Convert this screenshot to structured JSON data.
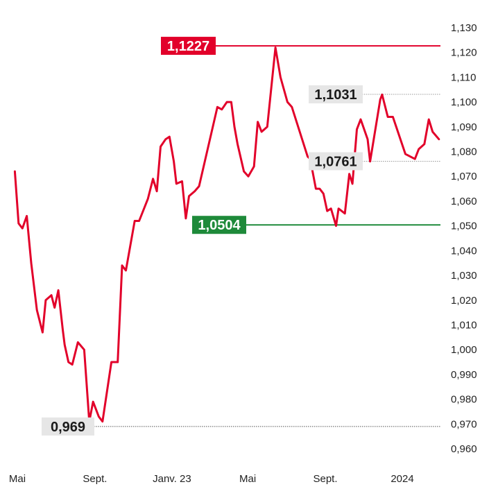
{
  "chart_data": {
    "type": "line",
    "title": "",
    "xlabel": "",
    "ylabel": "",
    "ylim": [
      0.96,
      1.13
    ],
    "y_ticks": [
      "1,130",
      "1,120",
      "1,110",
      "1,100",
      "1,090",
      "1,080",
      "1,070",
      "1,060",
      "1,050",
      "1,040",
      "1,030",
      "1,020",
      "1,010",
      "1,000",
      "0,990",
      "0,980",
      "0,970",
      "0,960"
    ],
    "y_tick_values": [
      1.13,
      1.12,
      1.11,
      1.1,
      1.09,
      1.08,
      1.07,
      1.06,
      1.05,
      1.04,
      1.03,
      1.02,
      1.01,
      1.0,
      0.99,
      0.98,
      0.97,
      0.96
    ],
    "x_ticks": [
      "Mai",
      "Sept.",
      "Janv. 23",
      "Mai",
      "Sept.",
      "2024"
    ],
    "x_tick_dates": [
      "2022-05-01",
      "2022-09-01",
      "2023-01-01",
      "2023-05-01",
      "2023-09-01",
      "2024-01-01"
    ],
    "grid": false,
    "series": [
      {
        "color": "#e2002a",
        "points": [
          [
            "2022-04-27",
            1.072
          ],
          [
            "2022-05-03",
            1.051
          ],
          [
            "2022-05-09",
            1.049
          ],
          [
            "2022-05-16",
            1.054
          ],
          [
            "2022-05-23",
            1.035
          ],
          [
            "2022-06-01",
            1.016
          ],
          [
            "2022-06-10",
            1.007
          ],
          [
            "2022-06-15",
            1.02
          ],
          [
            "2022-06-24",
            1.022
          ],
          [
            "2022-06-29",
            1.017
          ],
          [
            "2022-07-05",
            1.024
          ],
          [
            "2022-07-12",
            1.008
          ],
          [
            "2022-07-15",
            1.002
          ],
          [
            "2022-07-21",
            0.995
          ],
          [
            "2022-07-27",
            0.994
          ],
          [
            "2022-08-05",
            1.003
          ],
          [
            "2022-08-15",
            1.0
          ],
          [
            "2022-08-23",
            0.971
          ],
          [
            "2022-08-29",
            0.979
          ],
          [
            "2022-09-07",
            0.973
          ],
          [
            "2022-09-13",
            0.971
          ],
          [
            "2022-09-27",
            0.995
          ],
          [
            "2022-10-07",
            0.995
          ],
          [
            "2022-10-14",
            1.034
          ],
          [
            "2022-10-20",
            1.032
          ],
          [
            "2022-11-03",
            1.052
          ],
          [
            "2022-11-10",
            1.052
          ],
          [
            "2022-11-24",
            1.061
          ],
          [
            "2022-12-02",
            1.069
          ],
          [
            "2022-12-08",
            1.064
          ],
          [
            "2022-12-14",
            1.082
          ],
          [
            "2022-12-22",
            1.085
          ],
          [
            "2022-12-28",
            1.086
          ],
          [
            "2023-01-04",
            1.076
          ],
          [
            "2023-01-08",
            1.067
          ],
          [
            "2023-01-17",
            1.068
          ],
          [
            "2023-01-23",
            1.053
          ],
          [
            "2023-01-28",
            1.062
          ],
          [
            "2023-02-06",
            1.064
          ],
          [
            "2023-02-13",
            1.066
          ],
          [
            "2023-03-14",
            1.098
          ],
          [
            "2023-03-21",
            1.097
          ],
          [
            "2023-03-29",
            1.1
          ],
          [
            "2023-04-05",
            1.1
          ],
          [
            "2023-04-10",
            1.09
          ],
          [
            "2023-04-15",
            1.083
          ],
          [
            "2023-04-25",
            1.072
          ],
          [
            "2023-05-02",
            1.07
          ],
          [
            "2023-05-11",
            1.074
          ],
          [
            "2023-05-17",
            1.092
          ],
          [
            "2023-05-23",
            1.088
          ],
          [
            "2023-06-01",
            1.09
          ],
          [
            "2023-06-14",
            1.122
          ],
          [
            "2023-06-22",
            1.11
          ],
          [
            "2023-07-03",
            1.1
          ],
          [
            "2023-07-10",
            1.098
          ],
          [
            "2023-08-04",
            1.078
          ],
          [
            "2023-08-08",
            1.077
          ],
          [
            "2023-08-17",
            1.065
          ],
          [
            "2023-08-23",
            1.065
          ],
          [
            "2023-08-29",
            1.063
          ],
          [
            "2023-09-04",
            1.056
          ],
          [
            "2023-09-10",
            1.057
          ],
          [
            "2023-09-18",
            1.05
          ],
          [
            "2023-09-22",
            1.057
          ],
          [
            "2023-10-02",
            1.055
          ],
          [
            "2023-10-09",
            1.071
          ],
          [
            "2023-10-14",
            1.067
          ],
          [
            "2023-10-21",
            1.089
          ],
          [
            "2023-10-27",
            1.093
          ],
          [
            "2023-11-07",
            1.085
          ],
          [
            "2023-11-11",
            1.076
          ],
          [
            "2023-11-27",
            1.101
          ],
          [
            "2023-11-30",
            1.103
          ],
          [
            "2023-12-09",
            1.094
          ],
          [
            "2023-12-17",
            1.094
          ],
          [
            "2024-01-06",
            1.079
          ],
          [
            "2024-01-21",
            1.077
          ],
          [
            "2024-01-27",
            1.081
          ],
          [
            "2024-02-05",
            1.083
          ],
          [
            "2024-02-12",
            1.093
          ],
          [
            "2024-02-18",
            1.088
          ],
          [
            "2024-02-28",
            1.085
          ]
        ]
      }
    ],
    "reference_lines": [
      {
        "value": 1.1227,
        "label": "1,1227",
        "color": "#e2002a",
        "style": "solid"
      },
      {
        "value": 1.0504,
        "label": "1,0504",
        "color": "#1e8a3a",
        "style": "solid"
      },
      {
        "value": 1.1031,
        "label": "1,1031",
        "color": "#999999",
        "style": "dotted"
      },
      {
        "value": 1.0761,
        "label": "1,0761",
        "color": "#999999",
        "style": "dotted"
      },
      {
        "value": 0.969,
        "label": "0,969",
        "color": "#555555",
        "style": "dotted"
      }
    ]
  }
}
